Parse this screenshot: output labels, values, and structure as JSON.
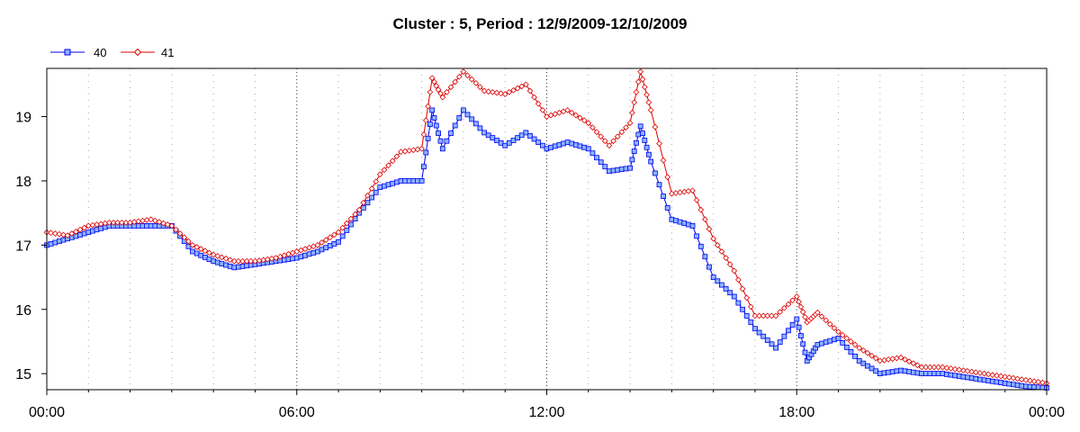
{
  "chart_data": {
    "type": "line",
    "title": "Cluster : 5, Period : 12/9/2009-12/10/2009",
    "xlabel": "",
    "ylabel": "",
    "x_ticks": [
      "00:00",
      "06:00",
      "12:00",
      "18:00",
      "00:00"
    ],
    "x_range_hours": [
      0,
      24
    ],
    "ylim": [
      14.75,
      19.75
    ],
    "y_ticks": [
      15,
      16,
      17,
      18,
      19
    ],
    "grid": true,
    "legend_position": "top-left",
    "series": [
      {
        "name": "40",
        "color": "#0000ee",
        "marker": "square",
        "marker_fill": "#8ab4ff",
        "x": [
          0,
          0.5,
          1,
          1.5,
          2,
          2.5,
          3,
          3.5,
          4,
          4.5,
          5,
          5.5,
          6,
          6.5,
          7,
          7.5,
          8,
          8.5,
          9,
          9.25,
          9.5,
          10,
          10.5,
          11,
          11.5,
          12,
          12.5,
          13,
          13.5,
          14,
          14.25,
          14.5,
          15,
          15.5,
          16,
          16.5,
          17,
          17.5,
          18,
          18.25,
          18.5,
          19,
          19.5,
          20,
          20.5,
          21,
          21.5,
          22,
          22.5,
          23,
          23.5,
          24
        ],
        "values": [
          17.0,
          17.1,
          17.2,
          17.3,
          17.3,
          17.3,
          17.3,
          16.9,
          16.75,
          16.65,
          16.7,
          16.75,
          16.8,
          16.9,
          17.05,
          17.5,
          17.9,
          18.0,
          18.0,
          19.1,
          18.5,
          19.1,
          18.75,
          18.55,
          18.75,
          18.5,
          18.6,
          18.5,
          18.15,
          18.2,
          18.85,
          18.3,
          17.4,
          17.3,
          16.5,
          16.2,
          15.7,
          15.4,
          15.85,
          15.2,
          15.45,
          15.55,
          15.2,
          15.0,
          15.05,
          15.0,
          15.0,
          14.95,
          14.9,
          14.85,
          14.8,
          14.78
        ]
      },
      {
        "name": "41",
        "color": "#dd0000",
        "marker": "diamond",
        "marker_fill": "#ffffff",
        "x": [
          0,
          0.5,
          1,
          1.5,
          2,
          2.5,
          3,
          3.5,
          4,
          4.5,
          5,
          5.5,
          6,
          6.5,
          7,
          7.5,
          8,
          8.5,
          9,
          9.25,
          9.5,
          10,
          10.5,
          11,
          11.5,
          12,
          12.5,
          13,
          13.5,
          14,
          14.25,
          14.5,
          15,
          15.5,
          16,
          16.5,
          17,
          17.5,
          18,
          18.25,
          18.5,
          19,
          19.5,
          20,
          20.5,
          21,
          21.5,
          22,
          22.5,
          23,
          23.5,
          24
        ],
        "values": [
          17.2,
          17.15,
          17.3,
          17.35,
          17.35,
          17.4,
          17.3,
          17.0,
          16.85,
          16.75,
          16.75,
          16.8,
          16.9,
          17.0,
          17.2,
          17.55,
          18.1,
          18.45,
          18.5,
          19.6,
          19.3,
          19.7,
          19.4,
          19.35,
          19.5,
          19.0,
          19.1,
          18.9,
          18.55,
          18.9,
          19.7,
          19.1,
          17.8,
          17.85,
          17.1,
          16.6,
          15.9,
          15.9,
          16.2,
          15.8,
          15.95,
          15.65,
          15.4,
          15.2,
          15.25,
          15.1,
          15.1,
          15.05,
          15.0,
          14.95,
          14.9,
          14.85
        ]
      }
    ]
  }
}
